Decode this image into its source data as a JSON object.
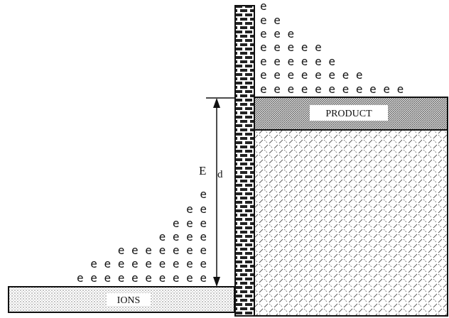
{
  "labels": {
    "ions": "IONS",
    "product": "PRODUCT",
    "energy_symbol": "E",
    "energy_subscript": "d"
  },
  "electrons_right": [
    "e",
    "e e",
    "e e e",
    "e e e e e",
    "e e e e e e",
    "e e e e e e e e",
    "e e e e e e e e e e e"
  ],
  "electrons_left": [
    "e",
    "e e",
    "e e e",
    "e e e e",
    "e e e e e e e",
    "e e e e e e e e e",
    "e e e e e e e e e e"
  ]
}
